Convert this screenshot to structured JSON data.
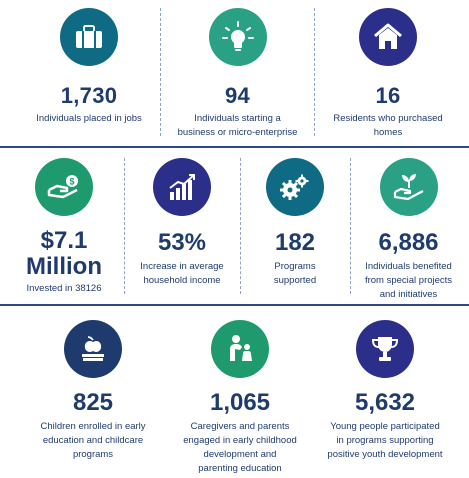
{
  "colors": {
    "navy": "#1f3b6e",
    "teal": "#0f6a84",
    "green": "#1f9a6e",
    "indigo": "#2c2f8a",
    "seafoam": "#2aa185"
  },
  "row1": [
    {
      "icon": "briefcase-icon",
      "value": "1,730",
      "label": [
        "Individuals placed in jobs"
      ]
    },
    {
      "icon": "lightbulb-icon",
      "value": "94",
      "label": [
        "Individuals starting a",
        "business or micro-enterprise"
      ]
    },
    {
      "icon": "house-icon",
      "value": "16",
      "label": [
        "Residents who purchased",
        "homes"
      ]
    }
  ],
  "row2": [
    {
      "icon": "money-hand-icon",
      "value": [
        "$7.1",
        "Million"
      ],
      "label": [
        "Invested in 38126"
      ]
    },
    {
      "icon": "growth-chart-icon",
      "value": "53%",
      "label": [
        "Increase in average",
        "household income"
      ]
    },
    {
      "icon": "gears-icon",
      "value": "182",
      "label": [
        "Programs",
        "supported"
      ]
    },
    {
      "icon": "hand-plant-icon",
      "value": "6,886",
      "label": [
        "Individuals benefited",
        "from special projects",
        "and initiatives"
      ]
    }
  ],
  "row3": [
    {
      "icon": "apple-book-icon",
      "value": "825",
      "label": [
        "Children enrolled in early",
        "education and childcare",
        "programs"
      ]
    },
    {
      "icon": "parent-child-icon",
      "value": "1,065",
      "label": [
        "Caregivers and parents",
        "engaged in early childhood",
        "development and",
        "parenting education"
      ]
    },
    {
      "icon": "trophy-icon",
      "value": "5,632",
      "label": [
        "Young people participated",
        "in programs supporting",
        "positive youth development"
      ]
    }
  ]
}
